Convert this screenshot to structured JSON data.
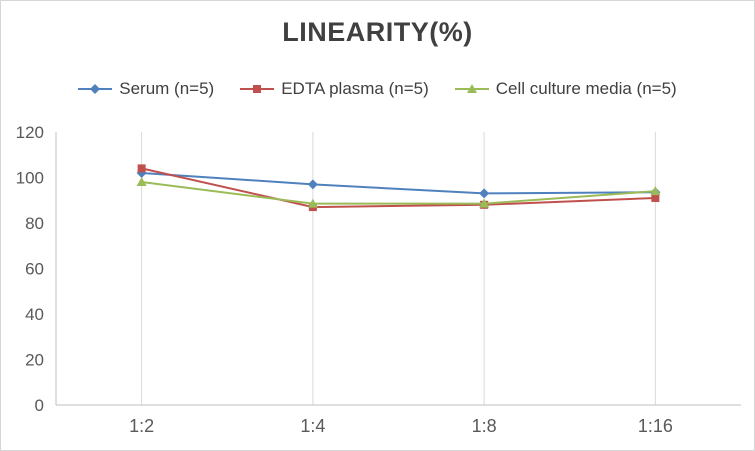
{
  "chart_data": {
    "type": "line",
    "title": "LINEARITY(%)",
    "categories": [
      "1:2",
      "1:4",
      "1:8",
      "1:16"
    ],
    "series": [
      {
        "name": "Serum (n=5)",
        "marker": "diamond",
        "color": "#4F81BD",
        "values": [
          102,
          97,
          93,
          93.5
        ]
      },
      {
        "name": "EDTA plasma (n=5)",
        "marker": "square",
        "color": "#C0504D",
        "values": [
          104,
          87,
          88,
          91
        ]
      },
      {
        "name": "Cell culture media (n=5)",
        "marker": "triangle",
        "color": "#9BBB59",
        "values": [
          98,
          88.5,
          88.5,
          94
        ]
      }
    ],
    "ylim": [
      0,
      120
    ],
    "yticks": [
      0,
      20,
      40,
      60,
      80,
      100,
      120
    ],
    "grid": "vertical-only",
    "legend_position": "top",
    "xlabel": "",
    "ylabel": ""
  },
  "colors": {
    "axis": "#BFBFBF",
    "gridline": "#D9D9D9",
    "tick_text": "#595959",
    "title_text": "#404040"
  }
}
